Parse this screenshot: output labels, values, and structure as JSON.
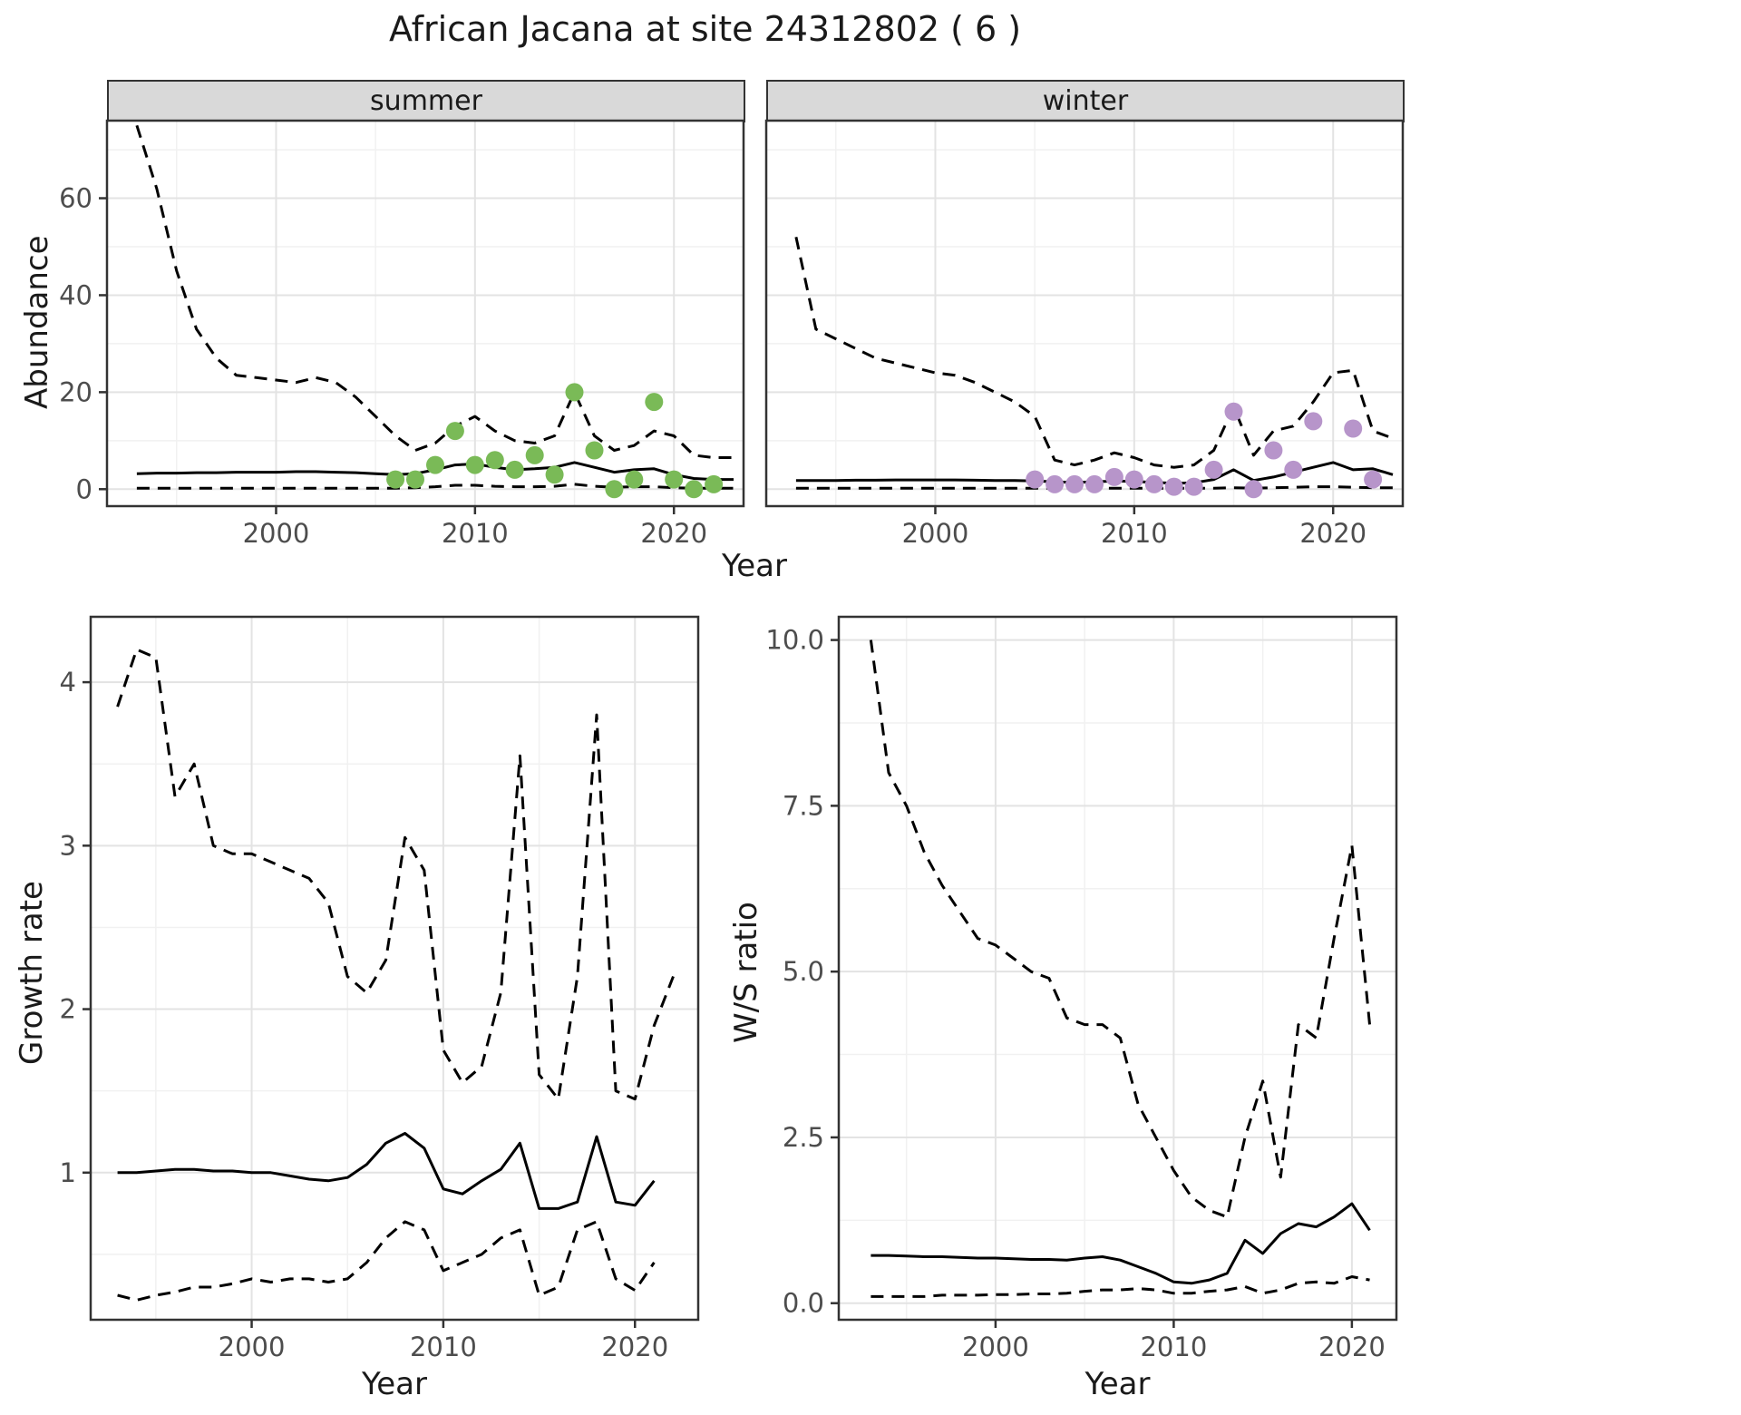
{
  "title": "African Jacana at site 24312802 ( 6 )",
  "axes": {
    "x_label": "Year",
    "y_label_abundance": "Abundance",
    "y_label_growth": "Growth rate",
    "y_label_ws": "W/S ratio"
  },
  "facets": {
    "summer": "summer",
    "winter": "winter"
  },
  "colors": {
    "summer_points": "#7aba57",
    "winter_points": "#b795ca",
    "line": "#000000",
    "grid_major": "#e3e3e3",
    "grid_minor": "#f1f1f1",
    "panel_border": "#333333",
    "strip_bg": "#d9d9d9",
    "tick_label": "#4d4d4d"
  },
  "chart_data": [
    {
      "type": "line",
      "facet": "summer",
      "xlabel": "Year",
      "ylabel": "Abundance",
      "xlim": [
        1991.5,
        2023.5
      ],
      "ylim": [
        -3.5,
        76
      ],
      "xticks": [
        2000,
        2010,
        2020
      ],
      "xminor": [
        1995,
        2005,
        2015
      ],
      "yticks": [
        0,
        20,
        40,
        60
      ],
      "ytick_labels": [
        "0",
        "20",
        "40",
        "60"
      ],
      "yminor": [
        10,
        30,
        50,
        70
      ],
      "show_ytick_labels": true,
      "series": [
        {
          "name": "upper-ci",
          "style": "dashed",
          "x": [
            1993,
            1994,
            1995,
            1996,
            1997,
            1998,
            1999,
            2000,
            2001,
            2002,
            2003,
            2004,
            2005,
            2006,
            2007,
            2008,
            2009,
            2010,
            2011,
            2012,
            2013,
            2014,
            2015,
            2016,
            2017,
            2018,
            2019,
            2020,
            2021,
            2022,
            2023
          ],
          "y": [
            75,
            62,
            45,
            33,
            27,
            23.5,
            23,
            22.5,
            22,
            23,
            22,
            19,
            15,
            11,
            8,
            9.5,
            13,
            15,
            12,
            10,
            9.5,
            11,
            20,
            11,
            8,
            9,
            12,
            11,
            7,
            6.5,
            6.5
          ]
        },
        {
          "name": "median-fit",
          "style": "solid",
          "x": [
            1993,
            1994,
            1995,
            1996,
            1997,
            1998,
            1999,
            2000,
            2001,
            2002,
            2003,
            2004,
            2005,
            2006,
            2007,
            2008,
            2009,
            2010,
            2011,
            2012,
            2013,
            2014,
            2015,
            2016,
            2017,
            2018,
            2019,
            2020,
            2021,
            2022,
            2023
          ],
          "y": [
            3.2,
            3.3,
            3.3,
            3.4,
            3.4,
            3.5,
            3.5,
            3.5,
            3.6,
            3.6,
            3.5,
            3.4,
            3.2,
            3.0,
            3.2,
            4.0,
            5.0,
            5.2,
            4.5,
            4.0,
            4.2,
            4.5,
            5.5,
            4.5,
            3.5,
            4.0,
            4.2,
            3.0,
            2.2,
            2.0,
            2.0
          ]
        },
        {
          "name": "lower-ci",
          "style": "dashed",
          "x": [
            1993,
            1994,
            1995,
            1996,
            1997,
            1998,
            1999,
            2000,
            2001,
            2002,
            2003,
            2004,
            2005,
            2006,
            2007,
            2008,
            2009,
            2010,
            2011,
            2012,
            2013,
            2014,
            2015,
            2016,
            2017,
            2018,
            2019,
            2020,
            2021,
            2022,
            2023
          ],
          "y": [
            0.2,
            0.2,
            0.2,
            0.2,
            0.2,
            0.2,
            0.2,
            0.2,
            0.2,
            0.2,
            0.2,
            0.2,
            0.2,
            0.2,
            0.3,
            0.5,
            0.8,
            0.8,
            0.6,
            0.5,
            0.5,
            0.6,
            1.0,
            0.6,
            0.4,
            0.5,
            0.5,
            0.3,
            0.2,
            0.2,
            0.2
          ]
        }
      ],
      "points": {
        "name": "observed-summer",
        "color": "#7aba57",
        "x": [
          2006,
          2007,
          2008,
          2009,
          2010,
          2011,
          2012,
          2013,
          2014,
          2015,
          2016,
          2017,
          2018,
          2019,
          2020,
          2021,
          2022
        ],
        "y": [
          2,
          2,
          5,
          12,
          5,
          6,
          4,
          7,
          3,
          20,
          8,
          0,
          2,
          18,
          2,
          0,
          1
        ]
      }
    },
    {
      "type": "line",
      "facet": "winter",
      "xlabel": "Year",
      "ylabel": "Abundance",
      "xlim": [
        1991.5,
        2023.5
      ],
      "ylim": [
        -3.5,
        76
      ],
      "xticks": [
        2000,
        2010,
        2020
      ],
      "xminor": [
        1995,
        2005,
        2015
      ],
      "yticks": [
        0,
        20,
        40,
        60
      ],
      "ytick_labels": [
        "0",
        "20",
        "40",
        "60"
      ],
      "yminor": [
        10,
        30,
        50,
        70
      ],
      "show_ytick_labels": false,
      "series": [
        {
          "name": "upper-ci",
          "style": "dashed",
          "x": [
            1993,
            1994,
            1995,
            1996,
            1997,
            1998,
            1999,
            2000,
            2001,
            2002,
            2003,
            2004,
            2005,
            2006,
            2007,
            2008,
            2009,
            2010,
            2011,
            2012,
            2013,
            2014,
            2015,
            2016,
            2017,
            2018,
            2019,
            2020,
            2021,
            2022,
            2023
          ],
          "y": [
            52,
            33,
            31,
            29,
            27,
            26,
            25,
            24,
            23.5,
            22,
            20,
            18,
            15,
            6,
            5,
            6,
            7.5,
            6.5,
            5,
            4.5,
            5,
            8,
            17,
            7,
            12,
            13,
            18,
            24,
            24.5,
            12,
            10.5
          ]
        },
        {
          "name": "median-fit",
          "style": "solid",
          "x": [
            1993,
            1994,
            1995,
            1996,
            1997,
            1998,
            1999,
            2000,
            2001,
            2002,
            2003,
            2004,
            2005,
            2006,
            2007,
            2008,
            2009,
            2010,
            2011,
            2012,
            2013,
            2014,
            2015,
            2016,
            2017,
            2018,
            2019,
            2020,
            2021,
            2022,
            2023
          ],
          "y": [
            1.8,
            1.8,
            1.8,
            1.85,
            1.85,
            1.9,
            1.9,
            1.9,
            1.9,
            1.85,
            1.8,
            1.8,
            1.7,
            1.5,
            1.4,
            1.5,
            1.7,
            1.6,
            1.4,
            1.2,
            1.3,
            2.0,
            4.0,
            1.8,
            2.5,
            3.5,
            4.5,
            5.5,
            4.0,
            4.2,
            3.0
          ]
        },
        {
          "name": "lower-ci",
          "style": "dashed",
          "x": [
            1993,
            1994,
            1995,
            1996,
            1997,
            1998,
            1999,
            2000,
            2001,
            2002,
            2003,
            2004,
            2005,
            2006,
            2007,
            2008,
            2009,
            2010,
            2011,
            2012,
            2013,
            2014,
            2015,
            2016,
            2017,
            2018,
            2019,
            2020,
            2021,
            2022,
            2023
          ],
          "y": [
            0.2,
            0.2,
            0.2,
            0.2,
            0.2,
            0.2,
            0.2,
            0.2,
            0.2,
            0.2,
            0.2,
            0.2,
            0.2,
            0.2,
            0.2,
            0.2,
            0.2,
            0.2,
            0.2,
            0.2,
            0.2,
            0.2,
            0.3,
            0.2,
            0.3,
            0.4,
            0.5,
            0.5,
            0.4,
            0.3,
            0.3
          ]
        }
      ],
      "points": {
        "name": "observed-winter",
        "color": "#b795ca",
        "x": [
          2005,
          2006,
          2007,
          2008,
          2009,
          2010,
          2011,
          2012,
          2013,
          2014,
          2015,
          2016,
          2017,
          2018,
          2019,
          2021,
          2022
        ],
        "y": [
          2,
          1,
          1,
          1,
          2.5,
          2,
          1,
          0.5,
          0.5,
          4,
          16,
          0,
          8,
          4,
          14,
          12.5,
          2
        ]
      }
    },
    {
      "type": "line",
      "facet": null,
      "xlabel": "Year",
      "ylabel": "Growth rate",
      "xlim": [
        1991.6,
        2023.3
      ],
      "ylim": [
        0.1,
        4.4
      ],
      "xticks": [
        2000,
        2010,
        2020
      ],
      "xminor": [
        1995,
        2005,
        2015
      ],
      "yticks": [
        1,
        2,
        3,
        4
      ],
      "ytick_labels": [
        "1",
        "2",
        "3",
        "4"
      ],
      "yminor": [
        0.5,
        1.5,
        2.5,
        3.5
      ],
      "show_ytick_labels": true,
      "series": [
        {
          "name": "upper-ci",
          "style": "dashed",
          "x": [
            1993,
            1994,
            1995,
            1996,
            1997,
            1998,
            1999,
            2000,
            2001,
            2002,
            2003,
            2004,
            2005,
            2006,
            2007,
            2008,
            2009,
            2010,
            2011,
            2012,
            2013,
            2014,
            2015,
            2016,
            2017,
            2018,
            2019,
            2020,
            2021,
            2022
          ],
          "y": [
            3.85,
            4.2,
            4.15,
            3.3,
            3.5,
            3.0,
            2.95,
            2.95,
            2.9,
            2.85,
            2.8,
            2.65,
            2.2,
            2.1,
            2.3,
            3.05,
            2.85,
            1.75,
            1.55,
            1.65,
            2.1,
            3.55,
            1.6,
            1.45,
            2.2,
            3.8,
            1.5,
            1.45,
            1.9,
            2.2
          ]
        },
        {
          "name": "median-fit",
          "style": "solid",
          "x": [
            1993,
            1994,
            1995,
            1996,
            1997,
            1998,
            1999,
            2000,
            2001,
            2002,
            2003,
            2004,
            2005,
            2006,
            2007,
            2008,
            2009,
            2010,
            2011,
            2012,
            2013,
            2014,
            2015,
            2016,
            2017,
            2018,
            2019,
            2020,
            2021
          ],
          "y": [
            1.0,
            1.0,
            1.01,
            1.02,
            1.02,
            1.01,
            1.01,
            1.0,
            1.0,
            0.98,
            0.96,
            0.95,
            0.97,
            1.05,
            1.18,
            1.24,
            1.15,
            0.9,
            0.87,
            0.95,
            1.02,
            1.18,
            0.78,
            0.78,
            0.82,
            1.22,
            0.82,
            0.8,
            0.95
          ]
        },
        {
          "name": "lower-ci",
          "style": "dashed",
          "x": [
            1993,
            1994,
            1995,
            1996,
            1997,
            1998,
            1999,
            2000,
            2001,
            2002,
            2003,
            2004,
            2005,
            2006,
            2007,
            2008,
            2009,
            2010,
            2011,
            2012,
            2013,
            2014,
            2015,
            2016,
            2017,
            2018,
            2019,
            2020,
            2021
          ],
          "y": [
            0.25,
            0.22,
            0.25,
            0.27,
            0.3,
            0.3,
            0.32,
            0.35,
            0.33,
            0.35,
            0.35,
            0.33,
            0.35,
            0.45,
            0.6,
            0.7,
            0.65,
            0.4,
            0.45,
            0.5,
            0.6,
            0.65,
            0.25,
            0.3,
            0.65,
            0.7,
            0.35,
            0.28,
            0.45
          ]
        }
      ],
      "points": null
    },
    {
      "type": "line",
      "facet": null,
      "xlabel": "Year",
      "ylabel": "W/S ratio",
      "xlim": [
        1991.2,
        2022.5
      ],
      "ylim": [
        -0.25,
        10.35
      ],
      "xticks": [
        2000,
        2010,
        2020
      ],
      "xminor": [
        1995,
        2005,
        2015
      ],
      "yticks": [
        0,
        2.5,
        5,
        7.5,
        10
      ],
      "ytick_labels": [
        "0.0",
        "2.5",
        "5.0",
        "7.5",
        "10.0"
      ],
      "yminor": [
        1.25,
        3.75,
        6.25,
        8.75
      ],
      "show_ytick_labels": true,
      "series": [
        {
          "name": "upper-ci",
          "style": "dashed",
          "x": [
            1993,
            1994,
            1995,
            1996,
            1997,
            1998,
            1999,
            2000,
            2001,
            2002,
            2003,
            2004,
            2005,
            2006,
            2007,
            2008,
            2009,
            2010,
            2011,
            2012,
            2013,
            2014,
            2015,
            2016,
            2017,
            2018,
            2019,
            2020,
            2021
          ],
          "y": [
            10.0,
            8.0,
            7.5,
            6.8,
            6.3,
            5.9,
            5.5,
            5.4,
            5.2,
            5.0,
            4.9,
            4.3,
            4.2,
            4.2,
            4.0,
            3.0,
            2.5,
            2.0,
            1.6,
            1.4,
            1.3,
            2.5,
            3.35,
            1.9,
            4.2,
            4.0,
            5.5,
            6.9,
            4.2
          ]
        },
        {
          "name": "median-fit",
          "style": "solid",
          "x": [
            1993,
            1994,
            1995,
            1996,
            1997,
            1998,
            1999,
            2000,
            2001,
            2002,
            2003,
            2004,
            2005,
            2006,
            2007,
            2008,
            2009,
            2010,
            2011,
            2012,
            2013,
            2014,
            2015,
            2016,
            2017,
            2018,
            2019,
            2020,
            2021
          ],
          "y": [
            0.72,
            0.72,
            0.71,
            0.7,
            0.7,
            0.69,
            0.68,
            0.68,
            0.67,
            0.66,
            0.66,
            0.65,
            0.68,
            0.7,
            0.65,
            0.55,
            0.45,
            0.32,
            0.3,
            0.35,
            0.45,
            0.95,
            0.75,
            1.05,
            1.2,
            1.15,
            1.3,
            1.5,
            1.1
          ]
        },
        {
          "name": "lower-ci",
          "style": "dashed",
          "x": [
            1993,
            1994,
            1995,
            1996,
            1997,
            1998,
            1999,
            2000,
            2001,
            2002,
            2003,
            2004,
            2005,
            2006,
            2007,
            2008,
            2009,
            2010,
            2011,
            2012,
            2013,
            2014,
            2015,
            2016,
            2017,
            2018,
            2019,
            2020,
            2021
          ],
          "y": [
            0.1,
            0.1,
            0.1,
            0.1,
            0.12,
            0.12,
            0.12,
            0.13,
            0.13,
            0.14,
            0.14,
            0.15,
            0.18,
            0.2,
            0.2,
            0.22,
            0.2,
            0.15,
            0.15,
            0.18,
            0.2,
            0.25,
            0.15,
            0.2,
            0.3,
            0.32,
            0.3,
            0.4,
            0.35
          ]
        }
      ],
      "points": null
    }
  ]
}
